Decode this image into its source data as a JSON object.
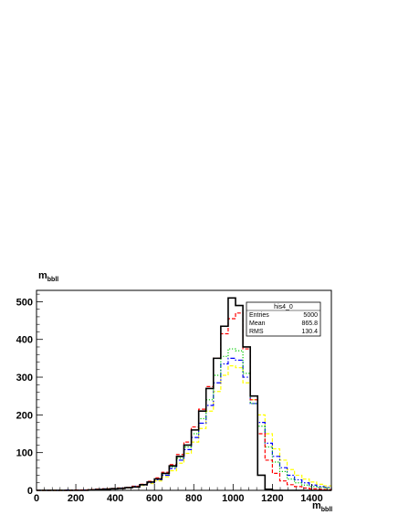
{
  "chart_data": {
    "type": "histogram",
    "title": "",
    "xlabel": {
      "main": "m",
      "sub": "bbll"
    },
    "ylabel": {
      "main": "m",
      "sub": "bbll"
    },
    "xlim": [
      0,
      1500
    ],
    "ylim": [
      0,
      530
    ],
    "bin_width": 37.5,
    "x_ticks": [
      0,
      200,
      400,
      600,
      800,
      1000,
      1200,
      1400
    ],
    "y_ticks": [
      0,
      100,
      200,
      300,
      400,
      500
    ],
    "grid": false,
    "series": [
      {
        "color": "#000000",
        "line": "solid",
        "values": [
          0,
          0,
          0,
          0,
          0,
          0,
          0,
          1,
          2,
          3,
          4,
          5,
          7,
          9,
          15,
          22,
          30,
          45,
          65,
          90,
          120,
          160,
          210,
          270,
          350,
          435,
          510,
          490,
          380,
          250,
          40,
          3,
          0,
          0,
          0,
          0,
          0,
          0,
          0,
          0
        ]
      },
      {
        "color": "#ff0000",
        "line": "dashed",
        "values": [
          0,
          0,
          0,
          0,
          0,
          1,
          1,
          2,
          3,
          4,
          5,
          6,
          8,
          11,
          16,
          24,
          33,
          48,
          68,
          95,
          128,
          168,
          215,
          275,
          350,
          415,
          455,
          470,
          375,
          240,
          150,
          80,
          45,
          25,
          15,
          10,
          6,
          4,
          3,
          2
        ]
      },
      {
        "color": "#00cc00",
        "line": "dotted",
        "values": [
          0,
          0,
          0,
          0,
          0,
          1,
          1,
          2,
          3,
          4,
          5,
          6,
          8,
          10,
          15,
          22,
          30,
          44,
          62,
          85,
          115,
          150,
          190,
          240,
          305,
          355,
          375,
          370,
          310,
          230,
          170,
          115,
          75,
          50,
          30,
          20,
          14,
          10,
          8,
          6
        ]
      },
      {
        "color": "#0000ff",
        "line": "dashdot",
        "values": [
          0,
          0,
          0,
          0,
          1,
          1,
          1,
          2,
          3,
          4,
          5,
          6,
          8,
          11,
          14,
          20,
          28,
          40,
          58,
          80,
          108,
          140,
          178,
          225,
          285,
          335,
          350,
          345,
          300,
          230,
          180,
          125,
          90,
          60,
          40,
          28,
          20,
          14,
          10,
          8
        ]
      },
      {
        "color": "#ffff00",
        "line": "dashed",
        "values": [
          0,
          0,
          0,
          0,
          1,
          1,
          1,
          2,
          3,
          4,
          5,
          6,
          7,
          10,
          13,
          18,
          25,
          36,
          52,
          72,
          98,
          128,
          164,
          210,
          262,
          305,
          330,
          325,
          285,
          240,
          200,
          150,
          110,
          80,
          55,
          40,
          30,
          22,
          16,
          12
        ]
      }
    ],
    "stats": {
      "name": "his4_0",
      "entries_label": "Entries",
      "entries": "5000",
      "mean_label": "Mean",
      "mean": "865.8",
      "rms_label": "RMS",
      "rms": "130.4"
    }
  }
}
